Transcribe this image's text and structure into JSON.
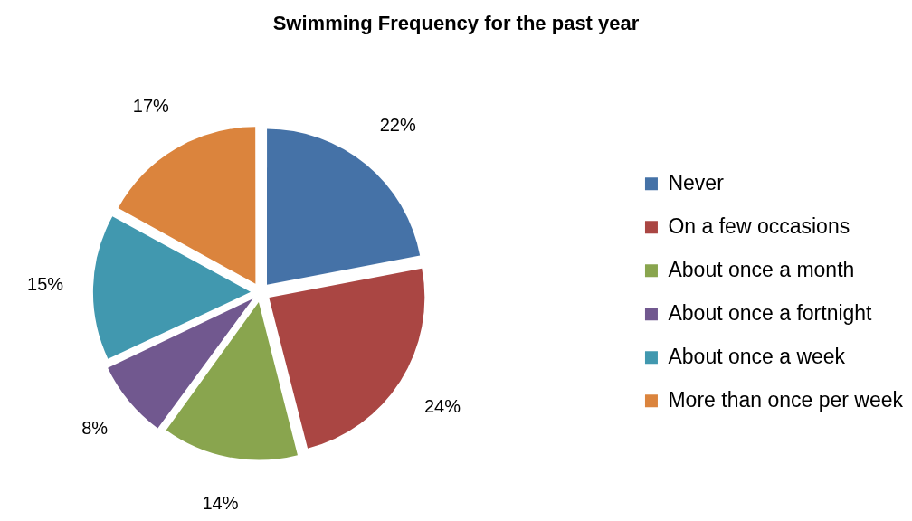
{
  "chart_data": {
    "type": "pie",
    "title": "Swimming Frequency for the past year",
    "categories": [
      "Never",
      "On a few occasions",
      "About once a month",
      "About once a fortnight",
      "About once a week",
      "More than once per week"
    ],
    "values": [
      22,
      24,
      14,
      8,
      15,
      17
    ],
    "colors": [
      "#4572a7",
      "#aa4643",
      "#89a54e",
      "#71588f",
      "#4198af",
      "#db843d"
    ],
    "value_labels": [
      "22%",
      "24%",
      "14%",
      "8%",
      "15%",
      "17%"
    ],
    "legend": "right"
  }
}
